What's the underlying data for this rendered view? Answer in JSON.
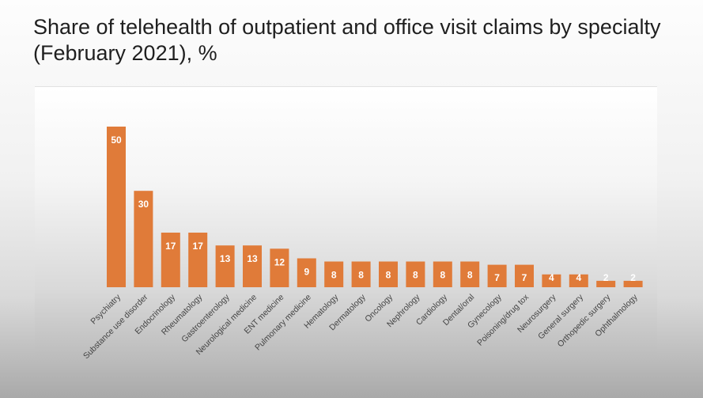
{
  "title": "Share of telehealth of outpatient and office visit claims by specialty (February 2021), %",
  "colors": {
    "bar": "#e07b39",
    "label_light": "#ffffff",
    "axis_text": "#444444"
  },
  "chart_data": {
    "type": "bar",
    "title": "Share of telehealth of outpatient and office visit claims by specialty (February 2021), %",
    "xlabel": "",
    "ylabel": "",
    "ylim": [
      0,
      55
    ],
    "grid": false,
    "legend": "none",
    "categories": [
      "Psychiatry",
      "Substance use disorder",
      "Endocrinology",
      "Rheumatology",
      "Gastroenterology",
      "Neurological medicine",
      "ENT medicine",
      "Pulmonary medicine",
      "Hematology",
      "Dermatology",
      "Oncology",
      "Nephrology",
      "Cardiology",
      "Dental/oral",
      "Gynecology",
      "Poisoning/drug tox",
      "Neurosurgery",
      "General surgery",
      "Orthopedic surgery",
      "Ophthalmology"
    ],
    "values": [
      50,
      30,
      17,
      17,
      13,
      13,
      12,
      9,
      8,
      8,
      8,
      8,
      8,
      8,
      7,
      7,
      4,
      4,
      2,
      2
    ]
  }
}
